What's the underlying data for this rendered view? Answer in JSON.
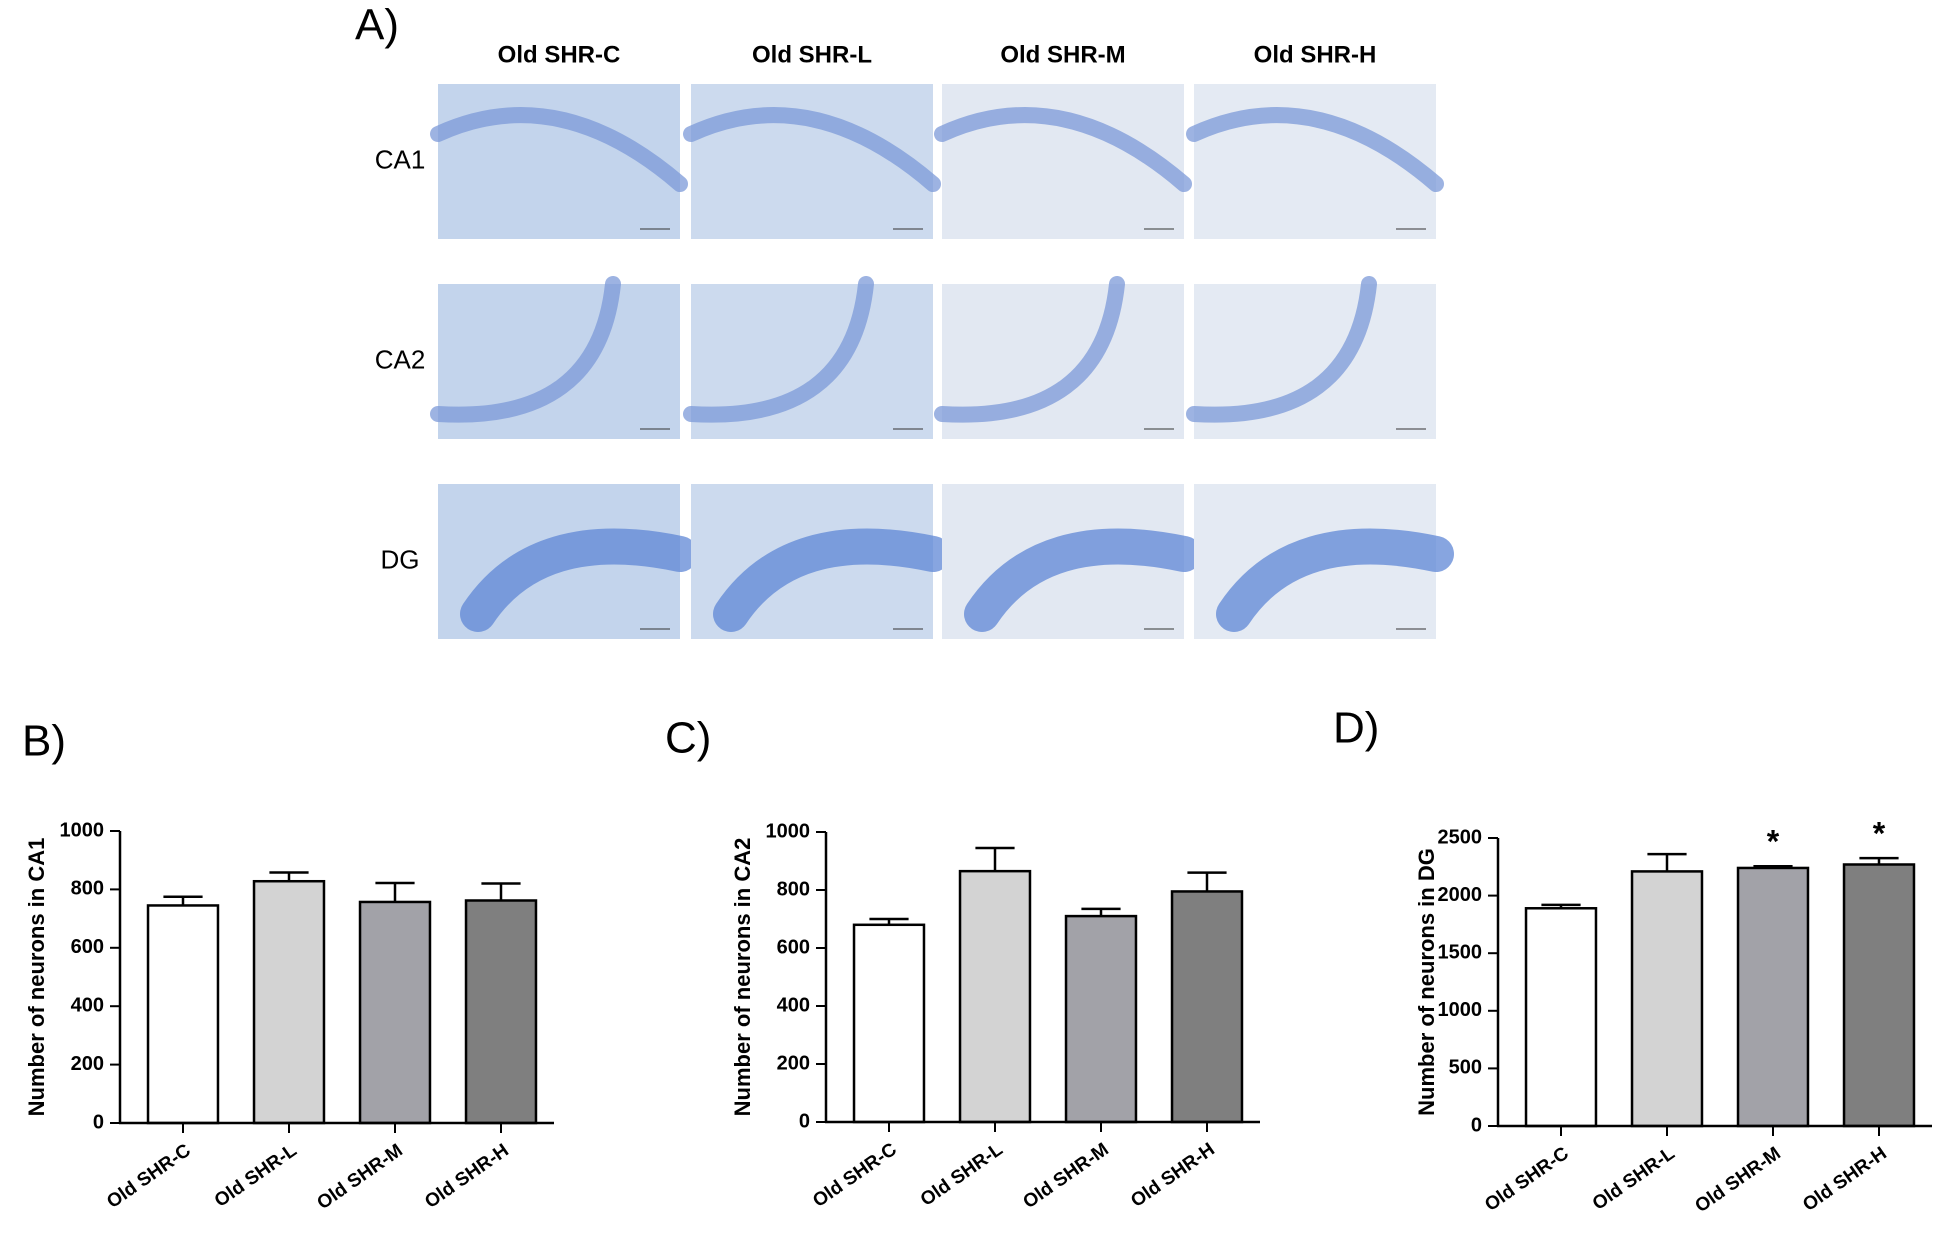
{
  "panel_a": {
    "label": "A)",
    "columns": [
      "Old SHR-C",
      "Old SHR-L",
      "Old SHR-M",
      "Old SHR-H"
    ],
    "rows": [
      "CA1",
      "CA2",
      "DG"
    ]
  },
  "chart_data": [
    {
      "type": "bar",
      "panel": "B)",
      "ylabel": "Number of neurons in CA1",
      "categories": [
        "Old SHR-C",
        "Old SHR-L",
        "Old SHR-M",
        "Old SHR-H"
      ],
      "values": [
        745,
        828,
        757,
        762
      ],
      "errors": [
        30,
        30,
        65,
        58
      ],
      "colors": [
        "#ffffff",
        "#d3d3d3",
        "#a2a2a8",
        "#7f7f7f"
      ],
      "ylim": [
        0,
        1000
      ],
      "yticks": [
        0,
        200,
        400,
        600,
        800,
        1000
      ]
    },
    {
      "type": "bar",
      "panel": "C)",
      "ylabel": "Number of neurons in CA2",
      "categories": [
        "Old SHR-C",
        "Old SHR-L",
        "Old SHR-M",
        "Old SHR-H"
      ],
      "values": [
        680,
        865,
        710,
        795
      ],
      "errors": [
        20,
        80,
        25,
        65
      ],
      "colors": [
        "#ffffff",
        "#d3d3d3",
        "#a2a2a8",
        "#7f7f7f"
      ],
      "ylim": [
        0,
        1000
      ],
      "yticks": [
        0,
        200,
        400,
        600,
        800,
        1000
      ]
    },
    {
      "type": "bar",
      "panel": "D)",
      "ylabel": "Number of neurons in DG",
      "categories": [
        "Old SHR-C",
        "Old SHR-L",
        "Old SHR-M",
        "Old SHR-H"
      ],
      "values": [
        1890,
        2210,
        2240,
        2270
      ],
      "errors": [
        30,
        150,
        15,
        55
      ],
      "significance": [
        null,
        null,
        "*",
        "*"
      ],
      "colors": [
        "#ffffff",
        "#d3d3d3",
        "#a2a2a8",
        "#7f7f7f"
      ],
      "ylim": [
        0,
        2500
      ],
      "yticks": [
        0,
        500,
        1000,
        1500,
        2000,
        2500
      ]
    }
  ]
}
